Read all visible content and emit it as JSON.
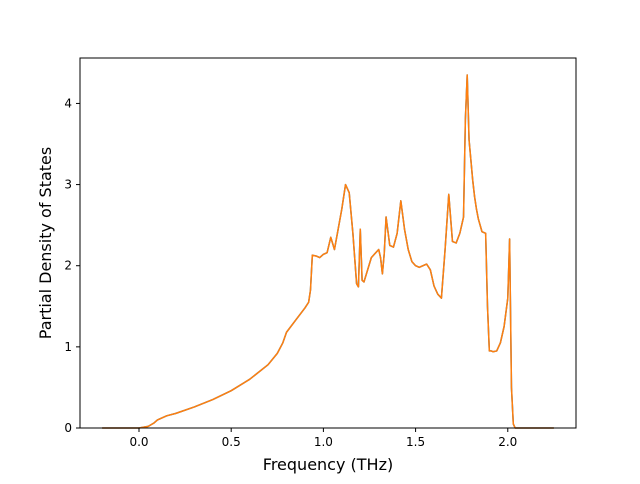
{
  "chart_data": {
    "type": "line",
    "title": "",
    "xlabel": "Frequency (THz)",
    "ylabel": "Partial Density of States",
    "xlim": [
      -0.32,
      2.37
    ],
    "ylim": [
      0,
      4.56
    ],
    "xticks": [
      0.0,
      0.5,
      1.0,
      1.5,
      2.0
    ],
    "xtick_labels": [
      "0.0",
      "0.5",
      "1.0",
      "1.5",
      "2.0"
    ],
    "yticks": [
      0,
      1,
      2,
      3,
      4
    ],
    "ytick_labels": [
      "0",
      "1",
      "2",
      "3",
      "4"
    ],
    "grid": false,
    "legend": "none",
    "series": [
      {
        "color": "#1f77b4",
        "x": [
          -0.2,
          0.0,
          0.05,
          0.08,
          0.1,
          0.15,
          0.2,
          0.3,
          0.4,
          0.5,
          0.6,
          0.7,
          0.75,
          0.78,
          0.8,
          0.85,
          0.9,
          0.92,
          0.93,
          0.94,
          0.96,
          0.98,
          1.0,
          1.02,
          1.04,
          1.06,
          1.08,
          1.1,
          1.12,
          1.14,
          1.16,
          1.18,
          1.19,
          1.2,
          1.21,
          1.22,
          1.24,
          1.26,
          1.28,
          1.3,
          1.31,
          1.32,
          1.33,
          1.34,
          1.36,
          1.38,
          1.4,
          1.42,
          1.44,
          1.46,
          1.48,
          1.5,
          1.52,
          1.54,
          1.56,
          1.58,
          1.6,
          1.62,
          1.64,
          1.66,
          1.68,
          1.7,
          1.72,
          1.74,
          1.76,
          1.77,
          1.78,
          1.79,
          1.8,
          1.81,
          1.82,
          1.83,
          1.84,
          1.86,
          1.88,
          1.89,
          1.9,
          1.91,
          1.92,
          1.94,
          1.96,
          1.98,
          2.0,
          2.01,
          2.02,
          2.03,
          2.04,
          2.05,
          2.06,
          2.1,
          2.15,
          2.2,
          2.25
        ],
        "y": [
          0.0,
          0.0,
          0.02,
          0.06,
          0.1,
          0.15,
          0.18,
          0.26,
          0.35,
          0.46,
          0.6,
          0.78,
          0.92,
          1.05,
          1.18,
          1.33,
          1.48,
          1.55,
          1.7,
          2.13,
          2.12,
          2.1,
          2.14,
          2.16,
          2.35,
          2.2,
          2.45,
          2.7,
          3.0,
          2.9,
          2.4,
          1.78,
          1.74,
          2.45,
          1.82,
          1.8,
          1.95,
          2.1,
          2.15,
          2.2,
          2.1,
          1.9,
          2.15,
          2.6,
          2.25,
          2.23,
          2.4,
          2.8,
          2.45,
          2.2,
          2.05,
          2.0,
          1.98,
          2.0,
          2.02,
          1.95,
          1.75,
          1.65,
          1.6,
          2.2,
          2.88,
          2.3,
          2.28,
          2.4,
          2.6,
          3.8,
          4.35,
          3.55,
          3.3,
          3.05,
          2.85,
          2.7,
          2.58,
          2.42,
          2.4,
          1.5,
          0.95,
          0.95,
          0.94,
          0.95,
          1.05,
          1.25,
          1.6,
          2.33,
          0.5,
          0.05,
          0.0,
          0.0,
          0.0,
          0.0,
          0.0,
          0.0,
          0.0
        ]
      },
      {
        "color": "#ff7f0e",
        "x": [
          -0.2,
          0.0,
          0.05,
          0.08,
          0.1,
          0.15,
          0.2,
          0.3,
          0.4,
          0.5,
          0.6,
          0.7,
          0.75,
          0.78,
          0.8,
          0.85,
          0.9,
          0.92,
          0.93,
          0.94,
          0.96,
          0.98,
          1.0,
          1.02,
          1.04,
          1.06,
          1.08,
          1.1,
          1.12,
          1.14,
          1.16,
          1.18,
          1.19,
          1.2,
          1.21,
          1.22,
          1.24,
          1.26,
          1.28,
          1.3,
          1.31,
          1.32,
          1.33,
          1.34,
          1.36,
          1.38,
          1.4,
          1.42,
          1.44,
          1.46,
          1.48,
          1.5,
          1.52,
          1.54,
          1.56,
          1.58,
          1.6,
          1.62,
          1.64,
          1.66,
          1.68,
          1.7,
          1.72,
          1.74,
          1.76,
          1.77,
          1.78,
          1.79,
          1.8,
          1.81,
          1.82,
          1.83,
          1.84,
          1.86,
          1.88,
          1.89,
          1.9,
          1.91,
          1.92,
          1.94,
          1.96,
          1.98,
          2.0,
          2.01,
          2.02,
          2.03,
          2.04,
          2.05,
          2.06,
          2.1,
          2.15,
          2.2,
          2.25
        ],
        "y": [
          0.0,
          0.0,
          0.02,
          0.06,
          0.1,
          0.15,
          0.18,
          0.26,
          0.35,
          0.46,
          0.6,
          0.78,
          0.92,
          1.05,
          1.18,
          1.33,
          1.48,
          1.55,
          1.7,
          2.13,
          2.12,
          2.1,
          2.14,
          2.16,
          2.35,
          2.2,
          2.45,
          2.7,
          3.0,
          2.9,
          2.4,
          1.78,
          1.74,
          2.45,
          1.82,
          1.8,
          1.95,
          2.1,
          2.15,
          2.2,
          2.1,
          1.9,
          2.15,
          2.6,
          2.25,
          2.23,
          2.4,
          2.8,
          2.45,
          2.2,
          2.05,
          2.0,
          1.98,
          2.0,
          2.02,
          1.95,
          1.75,
          1.65,
          1.6,
          2.2,
          2.88,
          2.3,
          2.28,
          2.4,
          2.6,
          3.8,
          4.35,
          3.55,
          3.3,
          3.05,
          2.85,
          2.7,
          2.58,
          2.42,
          2.4,
          1.5,
          0.95,
          0.95,
          0.94,
          0.95,
          1.05,
          1.25,
          1.6,
          2.33,
          0.5,
          0.05,
          0.0,
          0.0,
          0.0,
          0.0,
          0.0,
          0.0,
          0.0
        ]
      }
    ]
  }
}
